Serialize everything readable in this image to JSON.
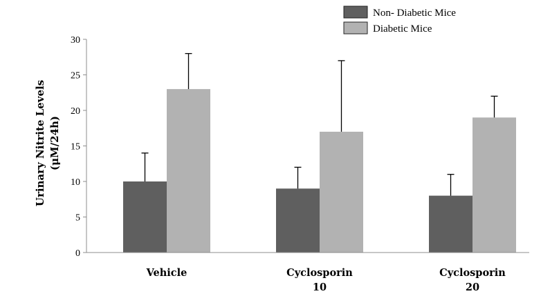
{
  "chart_data": {
    "type": "bar",
    "title": "",
    "xlabel": "",
    "ylabel": [
      "Urinary Nitrite Levels",
      "(μM/24h)"
    ],
    "ylim": [
      0,
      30
    ],
    "yticks": [
      0,
      5,
      10,
      15,
      20,
      25,
      30
    ],
    "grid": false,
    "legend_position": "top-right",
    "categories": [
      [
        "Vehicle"
      ],
      [
        "Cyclosporin",
        "10"
      ],
      [
        "Cyclosporin",
        "20"
      ]
    ],
    "series": [
      {
        "name": "Non- Diabetic Mice",
        "color": "#5f5f5f",
        "values": [
          10,
          9,
          8
        ],
        "error_plus": [
          4,
          3,
          3
        ]
      },
      {
        "name": "Diabetic Mice",
        "color": "#b2b2b2",
        "values": [
          23,
          17,
          19
        ],
        "error_plus": [
          5,
          10,
          3
        ]
      }
    ]
  }
}
